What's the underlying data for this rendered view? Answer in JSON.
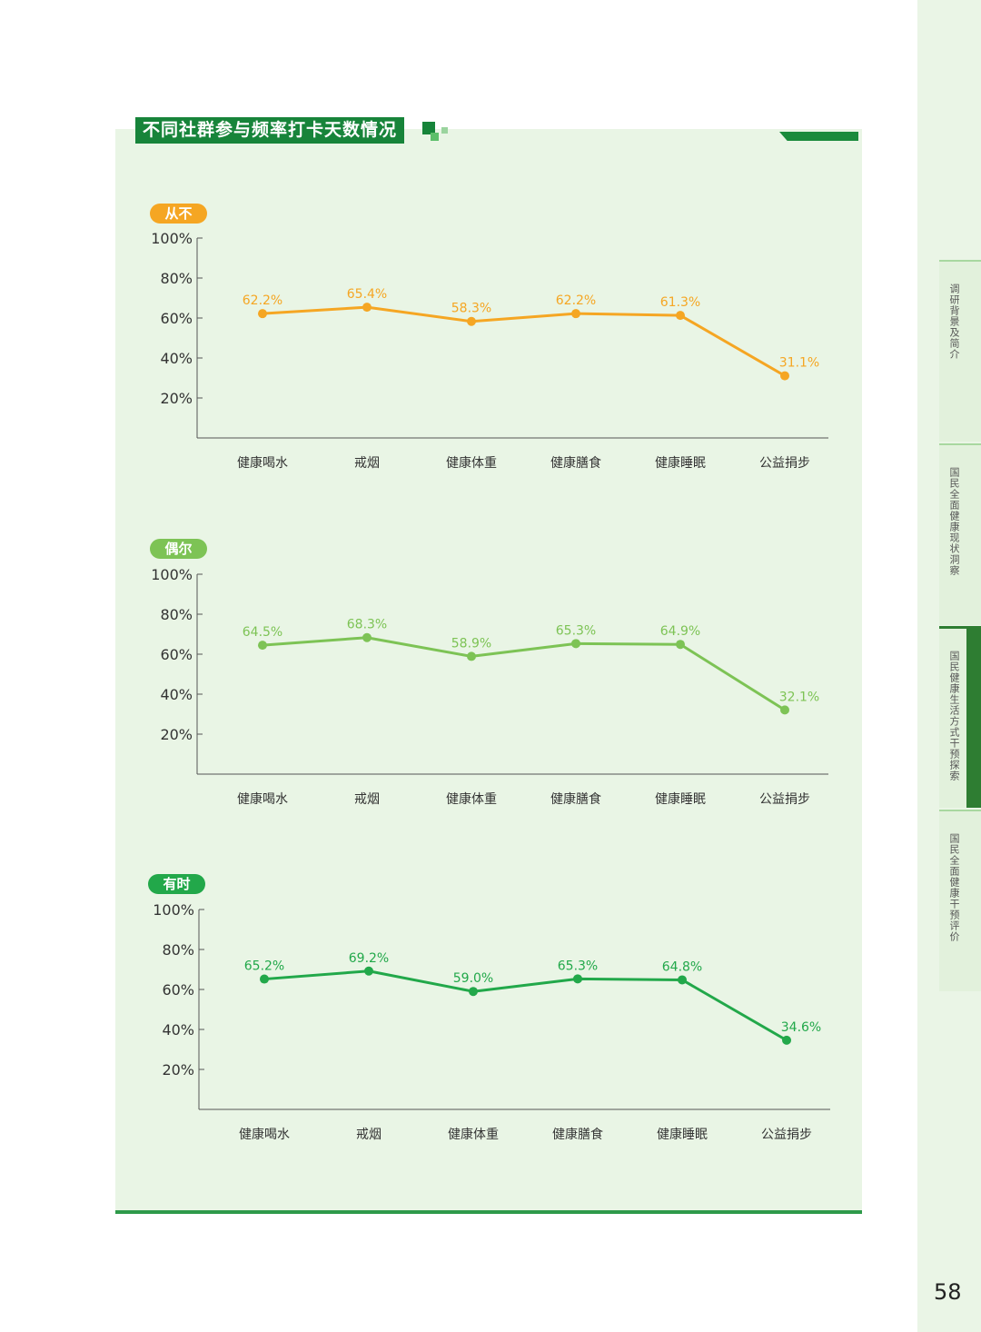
{
  "title": "不同社群参与频率打卡天数情况",
  "page_number": "58",
  "side_tabs": [
    {
      "label": "调研背景及简介",
      "active": false
    },
    {
      "label": "国民全面健康现状洞察",
      "active": false
    },
    {
      "label": "国民健康生活方式干预探索",
      "active": true
    },
    {
      "label": "国民全面健康干预评价",
      "active": false
    }
  ],
  "chart_data": [
    {
      "type": "line",
      "badge": "从不",
      "color": "#f5a623",
      "categories": [
        "健康喝水",
        "戒烟",
        "健康体重",
        "健康膳食",
        "健康睡眠",
        "公益捐步"
      ],
      "values": [
        62.2,
        65.4,
        58.3,
        62.2,
        61.3,
        31.1
      ],
      "data_labels": [
        "62.2%",
        "65.4%",
        "58.3%",
        "62.2%",
        "61.3%",
        "31.1%"
      ],
      "y_ticks": [
        "100%",
        "80%",
        "60%",
        "40%",
        "20%"
      ],
      "ylim": [
        0,
        100
      ]
    },
    {
      "type": "line",
      "badge": "偶尔",
      "color": "#7dc355",
      "categories": [
        "健康喝水",
        "戒烟",
        "健康体重",
        "健康膳食",
        "健康睡眠",
        "公益捐步"
      ],
      "values": [
        64.5,
        68.3,
        58.9,
        65.3,
        64.9,
        32.1
      ],
      "data_labels": [
        "64.5%",
        "68.3%",
        "58.9%",
        "65.3%",
        "64.9%",
        "32.1%"
      ],
      "y_ticks": [
        "100%",
        "80%",
        "60%",
        "40%",
        "20%"
      ],
      "ylim": [
        0,
        100
      ]
    },
    {
      "type": "line",
      "badge": "有时",
      "color": "#22a84a",
      "categories": [
        "健康喝水",
        "戒烟",
        "健康体重",
        "健康膳食",
        "健康睡眠",
        "公益捐步"
      ],
      "values": [
        65.2,
        69.2,
        59.0,
        65.3,
        64.8,
        34.6
      ],
      "data_labels": [
        "65.2%",
        "69.2%",
        "59.0%",
        "65.3%",
        "64.8%",
        "34.6%"
      ],
      "y_ticks": [
        "100%",
        "80%",
        "60%",
        "40%",
        "20%"
      ],
      "ylim": [
        0,
        100
      ]
    }
  ]
}
